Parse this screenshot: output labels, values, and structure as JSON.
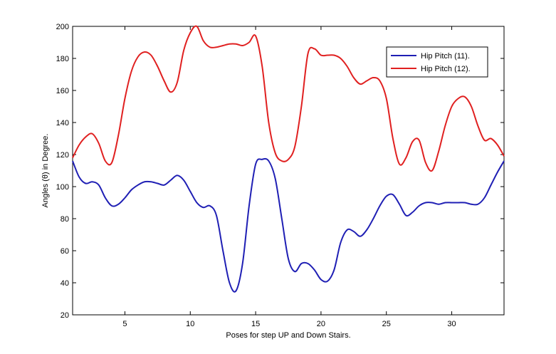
{
  "chart_data": {
    "type": "line",
    "xlabel": "Poses for step UP and Down Stairs.",
    "ylabel": "Angles (θ) in Degree.",
    "xlim": [
      1,
      34
    ],
    "ylim": [
      20,
      200
    ],
    "xticks": [
      5,
      10,
      15,
      20,
      25,
      30
    ],
    "yticks": [
      20,
      40,
      60,
      80,
      100,
      120,
      140,
      160,
      180,
      200
    ],
    "grid": false,
    "legend_position": "top-right",
    "series": [
      {
        "name": "Hip Pitch (11).",
        "color": "#1f1fb4",
        "x": [
          1,
          1.5,
          2,
          2.5,
          3,
          3.5,
          4,
          4.5,
          5,
          5.5,
          6,
          6.5,
          7,
          7.5,
          8,
          8.5,
          9,
          9.5,
          10,
          10.5,
          11,
          11.5,
          12,
          12.5,
          13,
          13.5,
          14,
          14.5,
          15,
          15.5,
          16,
          16.5,
          17,
          17.5,
          18,
          18.5,
          19,
          19.5,
          20,
          20.5,
          21,
          21.5,
          22,
          22.5,
          23,
          23.5,
          24,
          24.5,
          25,
          25.5,
          26,
          26.5,
          27,
          27.5,
          28,
          28.5,
          29,
          29.5,
          30,
          30.5,
          31,
          31.5,
          32,
          32.5,
          33,
          33.5,
          34
        ],
        "values": [
          116,
          106,
          102,
          103,
          101,
          93,
          88,
          89,
          93,
          98,
          101,
          103,
          103,
          102,
          101,
          104,
          107,
          104,
          97,
          90,
          87,
          88,
          82,
          60,
          40,
          35,
          52,
          88,
          114,
          117,
          116,
          105,
          80,
          55,
          47,
          52,
          52,
          48,
          42,
          41,
          48,
          65,
          73,
          72,
          69,
          73,
          80,
          88,
          94,
          95,
          89,
          82,
          84,
          88,
          90,
          90,
          89,
          90,
          90,
          90,
          90,
          89,
          89,
          93,
          101,
          109,
          116
        ]
      },
      {
        "name": "Hip Pitch (12).",
        "color": "#e02020",
        "x": [
          1,
          1.5,
          2,
          2.5,
          3,
          3.5,
          4,
          4.5,
          5,
          5.5,
          6,
          6.5,
          7,
          7.5,
          8,
          8.5,
          9,
          9.5,
          10,
          10.5,
          11,
          11.5,
          12,
          12.5,
          13,
          13.5,
          14,
          14.5,
          15,
          15.5,
          16,
          16.5,
          17,
          17.5,
          18,
          18.5,
          19,
          19.5,
          20,
          20.5,
          21,
          21.5,
          22,
          22.5,
          23,
          23.5,
          24,
          24.5,
          25,
          25.5,
          26,
          26.5,
          27,
          27.5,
          28,
          28.5,
          29,
          29.5,
          30,
          30.5,
          31,
          31.5,
          32,
          32.5,
          33,
          33.5,
          34
        ],
        "values": [
          118,
          126,
          131,
          133,
          127,
          116,
          115,
          132,
          155,
          172,
          181,
          184,
          182,
          175,
          166,
          159,
          165,
          185,
          196,
          200,
          191,
          187,
          187,
          188,
          189,
          189,
          188,
          190,
          194,
          175,
          140,
          121,
          116,
          117,
          125,
          150,
          183,
          186,
          182,
          182,
          182,
          180,
          175,
          168,
          164,
          166,
          168,
          166,
          155,
          130,
          114,
          118,
          128,
          129,
          115,
          110,
          122,
          138,
          150,
          155,
          156,
          150,
          138,
          129,
          130,
          126,
          119
        ]
      }
    ]
  }
}
